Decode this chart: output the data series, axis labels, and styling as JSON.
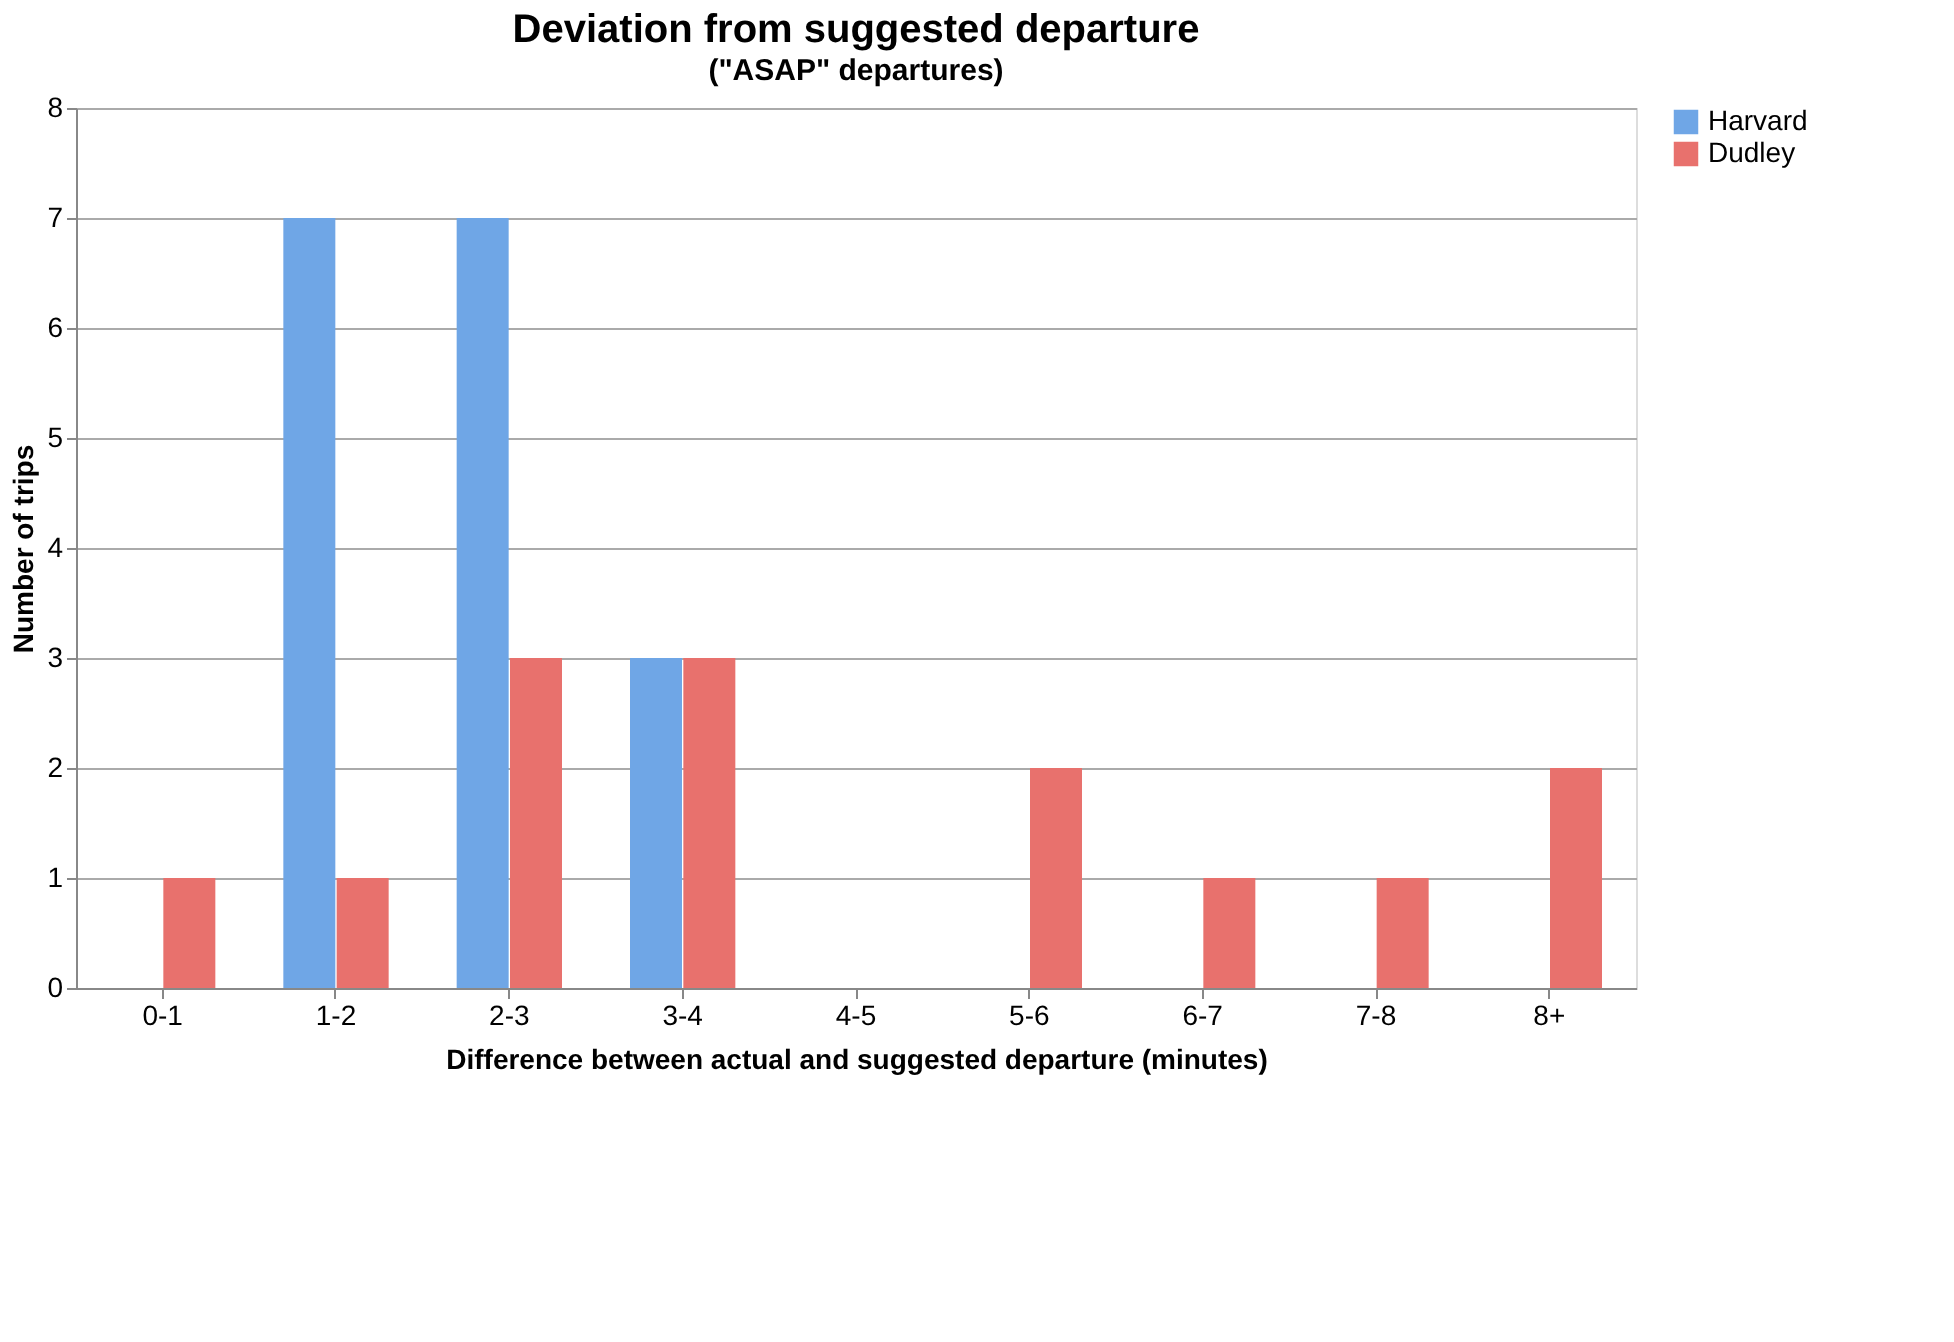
{
  "chart_data": {
    "type": "bar",
    "title": "Deviation from suggested departure",
    "subtitle": "(\"ASAP\" departures)",
    "xlabel": "Difference between actual and suggested departure (minutes)",
    "ylabel": "Number of trips",
    "categories": [
      "0-1",
      "1-2",
      "2-3",
      "3-4",
      "4-5",
      "5-6",
      "6-7",
      "7-8",
      "8+"
    ],
    "series": [
      {
        "name": "Harvard",
        "color": "#6fa6e6",
        "values": [
          0,
          7,
          7,
          3,
          0,
          0,
          0,
          0,
          0
        ]
      },
      {
        "name": "Dudley",
        "color": "#e8716d",
        "values": [
          1,
          1,
          3,
          3,
          0,
          2,
          1,
          1,
          2
        ]
      }
    ],
    "ylim": [
      0,
      8
    ],
    "yticks": [
      0,
      1,
      2,
      3,
      4,
      5,
      6,
      7,
      8
    ],
    "grid": "y",
    "legend": "right"
  }
}
